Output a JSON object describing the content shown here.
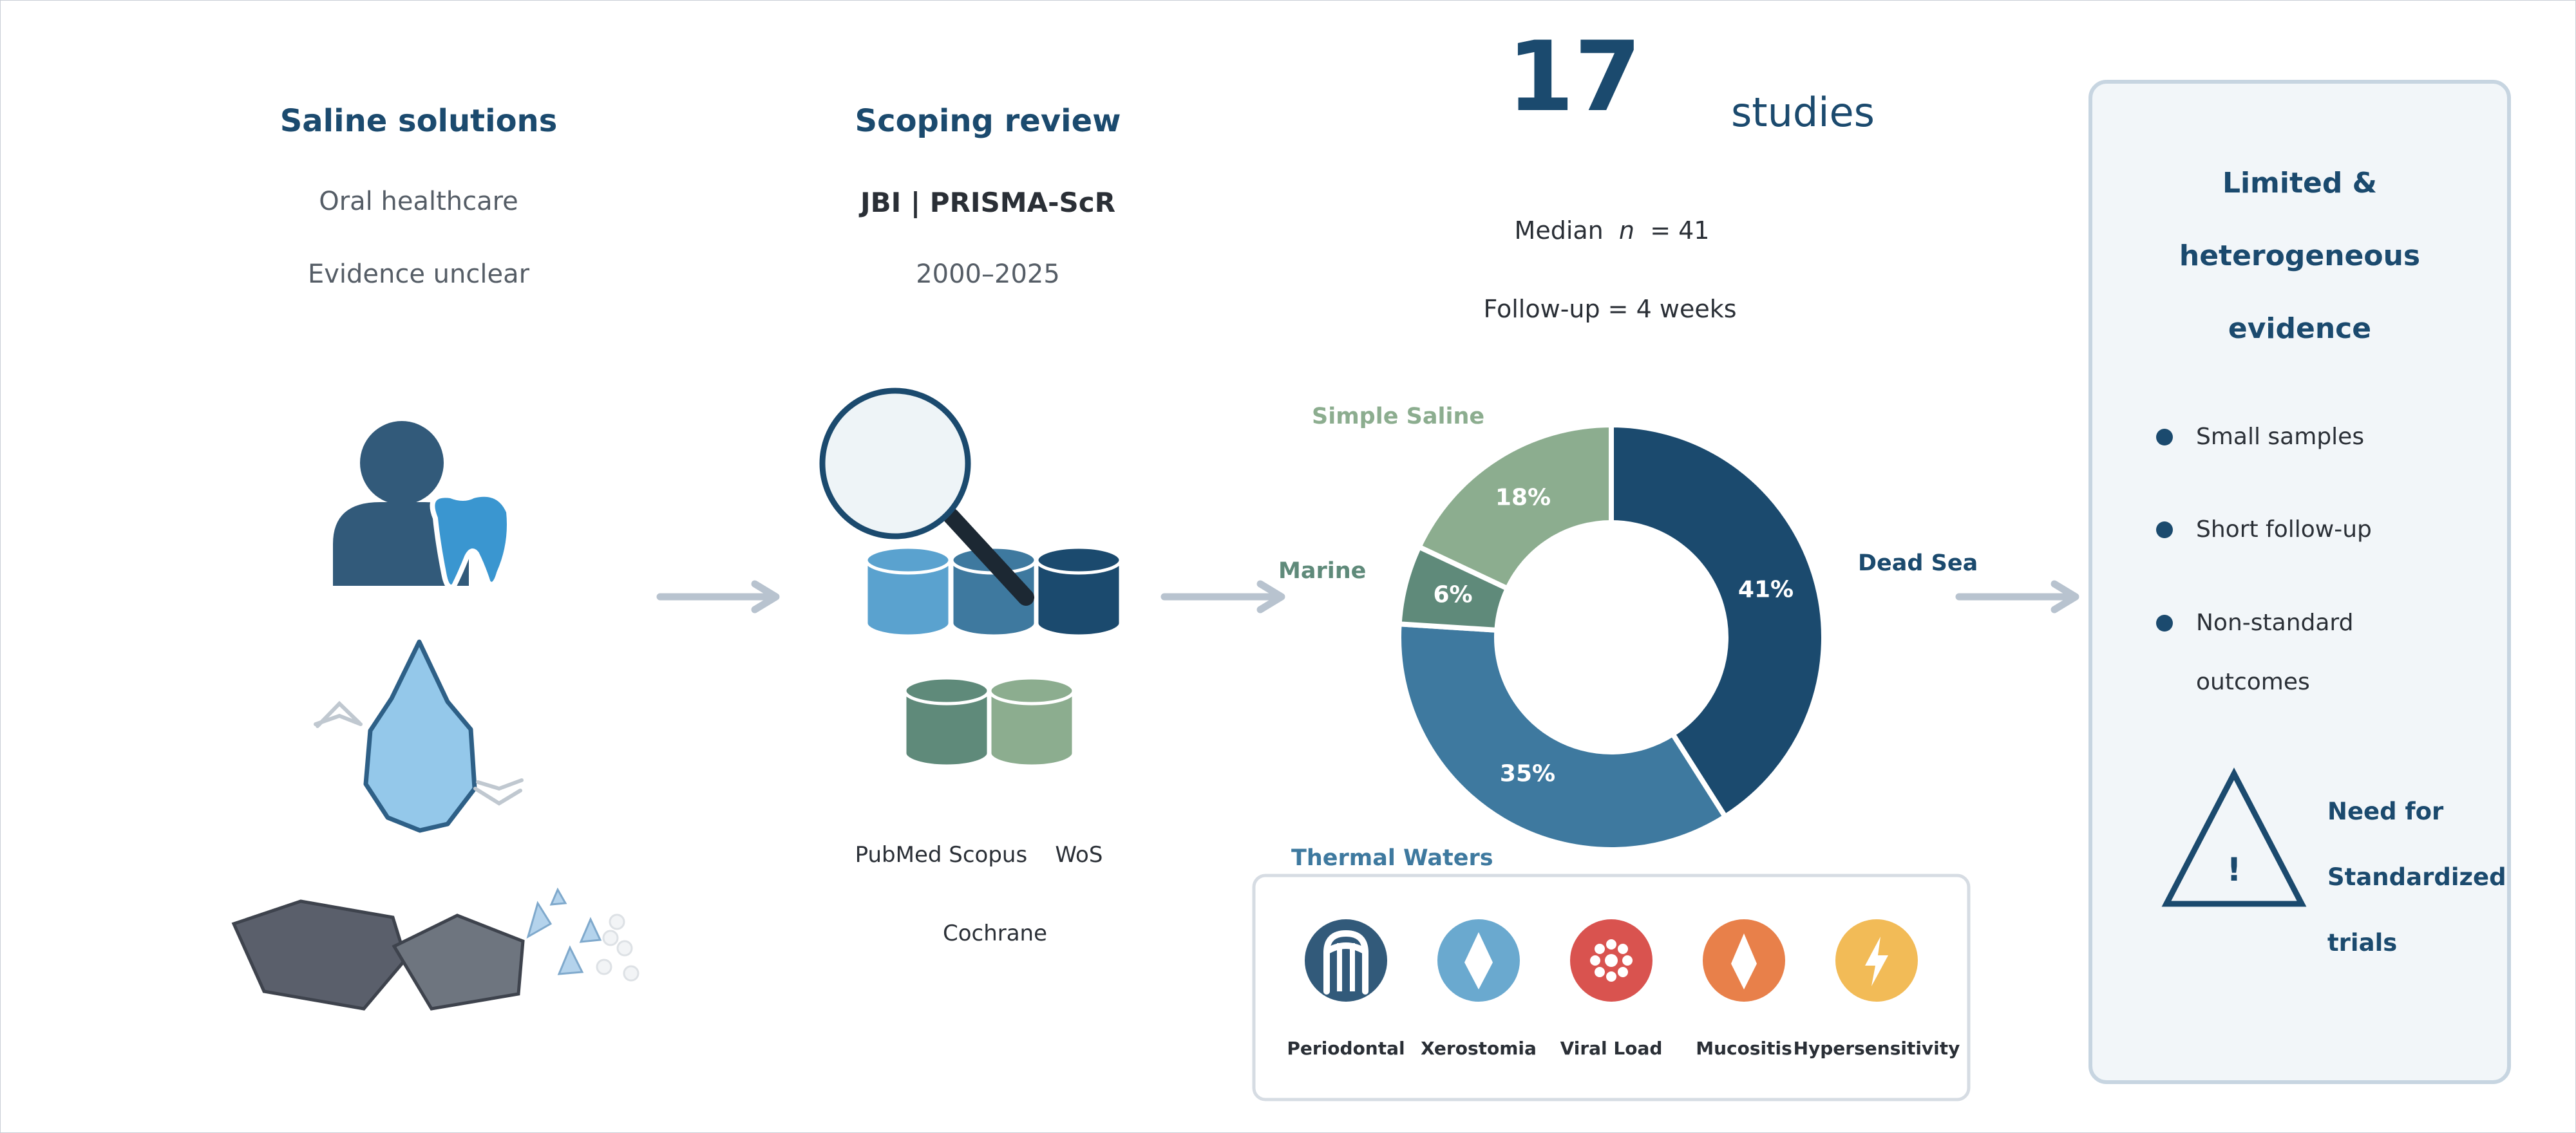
{
  "col1": {
    "title": "Saline solutions",
    "line1": "Oral healthcare",
    "line2": "Evidence unclear"
  },
  "col2": {
    "title": "Scoping review",
    "methods": "JBI | PRISMA-ScR",
    "years": "2000–2025",
    "databases_line1": "PubMed Scopus    WoS",
    "databases_line2": "Cochrane"
  },
  "stats": {
    "count": "17",
    "count_label": "studies",
    "median_prefix": "Median",
    "median_var": "n",
    "median_value": "= 41",
    "followup": "Follow-up = 4 weeks"
  },
  "chart_data": {
    "type": "pie",
    "donut": true,
    "slices": [
      {
        "label": "Dead Sea",
        "value": 41,
        "display": "41%",
        "color": "#1b4a6e"
      },
      {
        "label": "Thermal Waters",
        "value": 35,
        "display": "35%",
        "color": "#3e799f"
      },
      {
        "label": "Marine",
        "value": 6,
        "display": "6%",
        "color": "#5f8a7a"
      },
      {
        "label": "Simple Saline",
        "value": 18,
        "display": "18%",
        "color": "#8cad8f"
      }
    ]
  },
  "outcomes": [
    {
      "label": "Periodontal",
      "icon": "gum-icon",
      "color": "#325a7a"
    },
    {
      "label": "Xerostomia",
      "icon": "droplet-icon",
      "color": "#6aa9cf"
    },
    {
      "label": "Viral Load",
      "icon": "virus-icon",
      "color": "#d9534f"
    },
    {
      "label": "Mucositis",
      "icon": "flame-icon",
      "color": "#e8804a"
    },
    {
      "label": "Hypersensitivity",
      "icon": "bolt-icon",
      "color": "#f2bb57"
    }
  ],
  "evidence": {
    "title_lines": [
      "Limited &",
      "heterogeneous",
      "evidence"
    ],
    "bullets": [
      "Small samples",
      "Short follow-up",
      "Non-standard",
      "outcomes"
    ],
    "warning_icon": "warning-icon",
    "need_lines": [
      "Need for",
      "Standardized",
      "trials"
    ]
  },
  "colors": {
    "navy": "#1b4a6e",
    "arrow": "#b8c3cf",
    "panel_bg": "#f2f6f9"
  }
}
